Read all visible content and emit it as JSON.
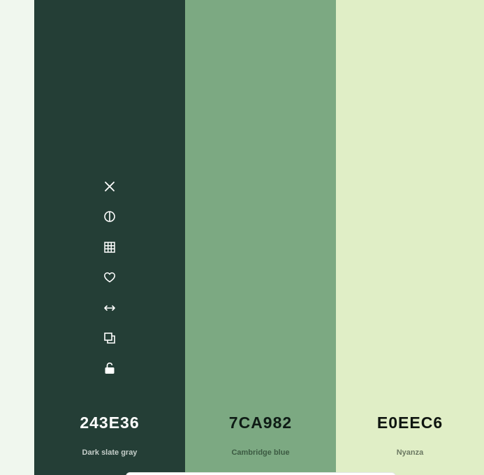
{
  "palette": {
    "colors": [
      {
        "hex": "243E36",
        "name": "Dark slate gray",
        "color": "#243e36"
      },
      {
        "hex": "7CA982",
        "name": "Cambridge blue",
        "color": "#7ca982"
      },
      {
        "hex": "E0EEC6",
        "name": "Nyanza",
        "color": "#e0eec6"
      }
    ],
    "tools": [
      {
        "icon": "close-icon"
      },
      {
        "icon": "contrast-icon"
      },
      {
        "icon": "shades-grid-icon"
      },
      {
        "icon": "heart-icon"
      },
      {
        "icon": "drag-arrows-icon"
      },
      {
        "icon": "copy-icon"
      },
      {
        "icon": "unlock-icon"
      }
    ]
  }
}
